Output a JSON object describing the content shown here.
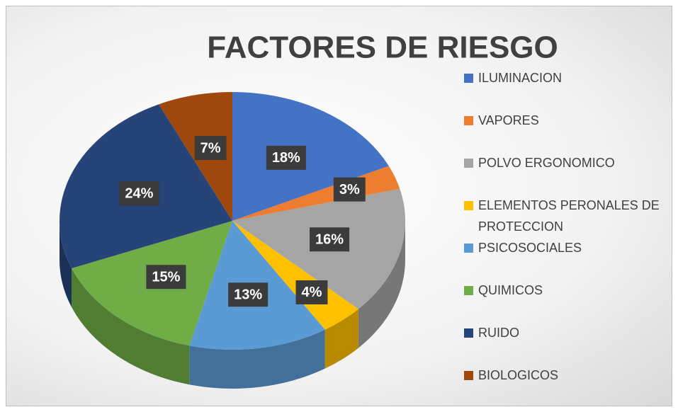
{
  "chart_data": {
    "type": "pie",
    "title": "FACTORES DE RIESGO",
    "categories": [
      "ILUMINACION",
      "VAPORES",
      "POLVO ERGONOMICO",
      "ELEMENTOS PERONALES DE PROTECCION",
      "PSICOSOCIALES",
      "QUIMICOS",
      "RUIDO",
      "BIOLOGICOS"
    ],
    "values": [
      18,
      3,
      16,
      4,
      13,
      15,
      24,
      7
    ],
    "value_labels": [
      "18%",
      "3%",
      "16%",
      "4%",
      "13%",
      "15%",
      "24%",
      "7%"
    ],
    "colors": [
      "#4472c4",
      "#ed7d31",
      "#a5a5a5",
      "#ffc000",
      "#5b9bd5",
      "#70ad47",
      "#264478",
      "#9e480e"
    ],
    "legend": "right"
  }
}
